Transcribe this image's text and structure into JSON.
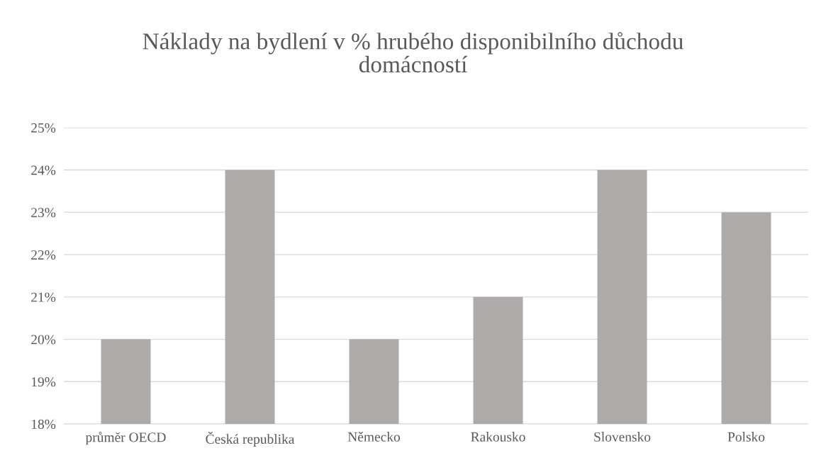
{
  "chart_data": {
    "type": "bar",
    "title": "Náklady na bydlení v % hrubého disponibilního důchodu\ndomácností",
    "categories": [
      "průměr OECD",
      "Česká republika",
      "Německo",
      "Rakousko",
      "Slovensko",
      "Polsko"
    ],
    "values": [
      20,
      24,
      20,
      21,
      24,
      23
    ],
    "color": "#aeaaaa",
    "ylim": [
      18,
      25
    ],
    "yticks": [
      {
        "value": 18,
        "label": "18%"
      },
      {
        "value": 19,
        "label": "19%"
      },
      {
        "value": 20,
        "label": "20%"
      },
      {
        "value": 21,
        "label": "21%"
      },
      {
        "value": 22,
        "label": "22%"
      },
      {
        "value": 23,
        "label": "23%"
      },
      {
        "value": 24,
        "label": "24%"
      },
      {
        "value": 25,
        "label": "25%"
      }
    ],
    "grid": "y"
  }
}
